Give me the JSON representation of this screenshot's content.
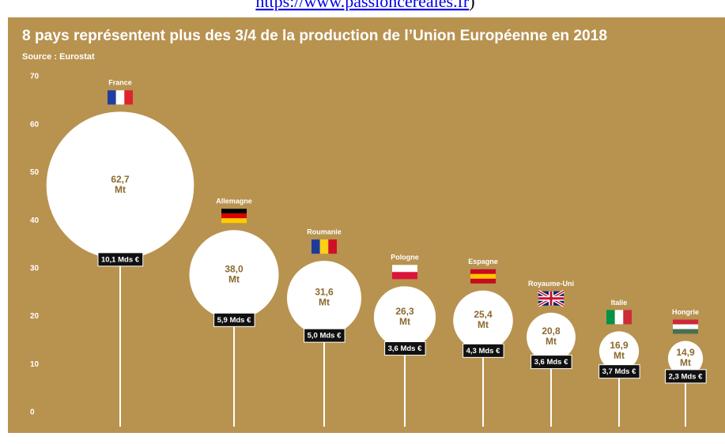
{
  "page_link": "https://www.passioncereales.fr",
  "link_suffix": ")",
  "chart_data": {
    "type": "bubble",
    "title": "8 pays représentent plus des 3/4 de la production de l’Union Européenne en 2018",
    "subtitle": "Source : Eurostat",
    "categories": [
      "France",
      "Allemagne",
      "Roumanie",
      "Pologne",
      "Espagne",
      "Royaume-Uni",
      "Italie",
      "Hongrie"
    ],
    "values": [
      62.7,
      38.0,
      31.6,
      26.3,
      25.4,
      20.8,
      16.9,
      14.9
    ],
    "value_labels": [
      "62,7 Mt",
      "38,0 Mt",
      "31,6 Mt",
      "26,3 Mt",
      "25,4 Mt",
      "20,8 Mt",
      "16,9 Mt",
      "14,9 Mt"
    ],
    "revenue_labels": [
      "10,1 Mds €",
      "5,9 Mds €",
      "5,0 Mds €",
      "3,6 Mds €",
      "4,3 Mds €",
      "3,6 Mds €",
      "3,7 Mds €",
      "2,3 Mds €"
    ],
    "color": "#ffffff",
    "ylim": [
      0,
      70
    ],
    "yticks": [
      0,
      10,
      20,
      30,
      40,
      50,
      60,
      70
    ],
    "grid": false
  }
}
